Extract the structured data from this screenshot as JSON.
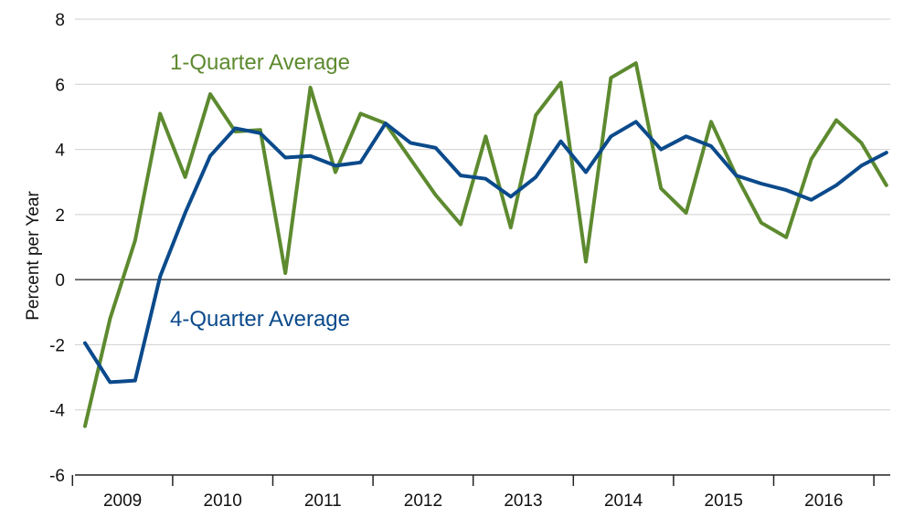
{
  "chart_data": {
    "type": "line",
    "title": "",
    "xlabel": "",
    "ylabel": "Percent per Year",
    "ylim": [
      -6,
      8
    ],
    "yticks": [
      8,
      6,
      4,
      2,
      0,
      -2,
      -4,
      -6
    ],
    "year_labels": [
      "2009",
      "2010",
      "2011",
      "2012",
      "2013",
      "2014",
      "2015",
      "2016"
    ],
    "grid": true,
    "colors": {
      "one_quarter": "#5d8a2f",
      "four_quarter": "#0b4a8b"
    },
    "series": [
      {
        "name": "1-Quarter Average",
        "key": "one_quarter",
        "values": [
          -4.5,
          -1.2,
          1.2,
          5.1,
          3.15,
          5.7,
          4.55,
          4.6,
          0.2,
          5.9,
          3.3,
          5.1,
          4.8,
          3.7,
          2.6,
          1.7,
          4.4,
          1.6,
          5.05,
          6.05,
          0.55,
          6.2,
          6.65,
          2.8,
          2.05,
          4.85,
          3.2,
          1.75,
          1.3,
          3.7,
          4.9,
          4.2,
          2.9
        ]
      },
      {
        "name": "4-Quarter Average",
        "key": "four_quarter",
        "values": [
          -1.95,
          -3.15,
          -3.1,
          0.1,
          2.05,
          3.8,
          4.65,
          4.5,
          3.75,
          3.8,
          3.5,
          3.6,
          4.8,
          4.2,
          4.05,
          3.2,
          3.1,
          2.55,
          3.15,
          4.25,
          3.3,
          4.4,
          4.85,
          4.0,
          4.4,
          4.1,
          3.2,
          2.95,
          2.75,
          2.45,
          2.9,
          3.5,
          3.9
        ]
      }
    ]
  }
}
